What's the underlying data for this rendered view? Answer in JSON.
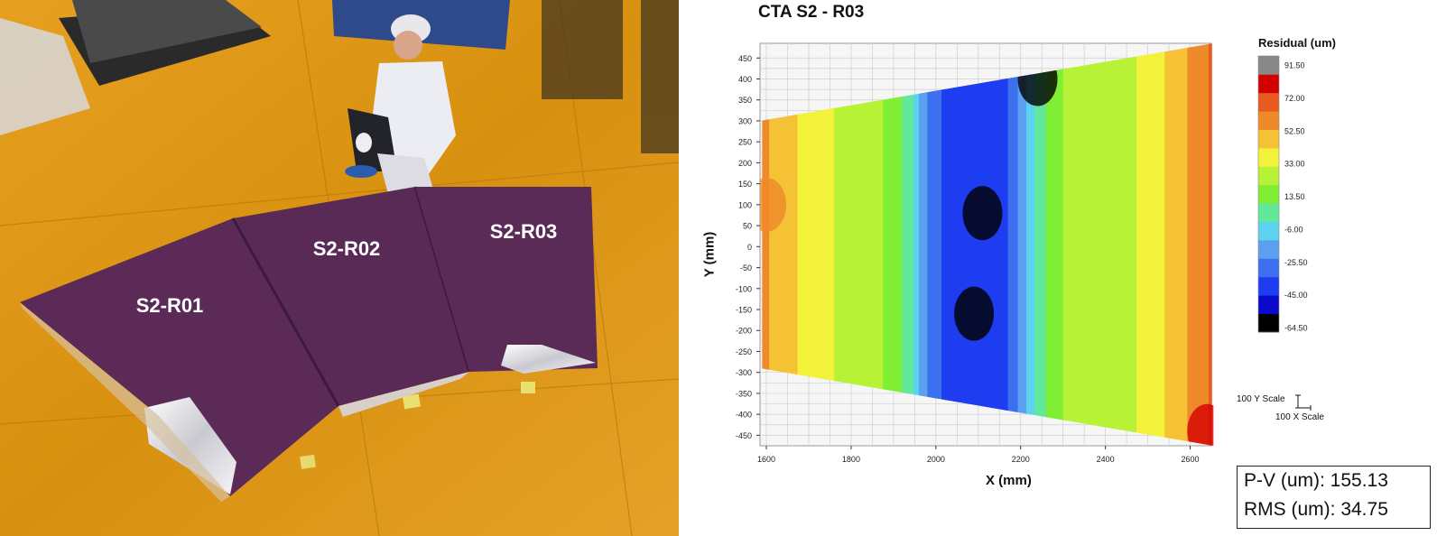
{
  "photo": {
    "panel_labels": [
      "S2-R01",
      "S2-R02",
      "S2-R03"
    ],
    "colors": {
      "floor": "#e49a18",
      "panel": "#5a2a55",
      "label": "#ffffff"
    }
  },
  "plot": {
    "title": "CTA S2 - R03",
    "colorbar": {
      "title": "Residual (um)",
      "tick_labels": [
        "91.50",
        "72.00",
        "52.50",
        "33.00",
        "13.50",
        "-6.00",
        "-25.50",
        "-45.00",
        "-64.50"
      ],
      "range_um": [
        -64.5,
        91.5
      ],
      "colors": [
        "#000000",
        "#0a0acc",
        "#1e3cf0",
        "#3c70ef",
        "#5aa0ee",
        "#5ad2f0",
        "#62e89a",
        "#80ee32",
        "#b8f236",
        "#f2f23a",
        "#f5c235",
        "#ef8a2a",
        "#e85a1e",
        "#d40000",
        "#888888"
      ]
    },
    "scale_bar": {
      "y_label": "100 Y Scale",
      "x_label": "100 X Scale"
    },
    "stats": {
      "pv_label": "P-V (um): 155.13",
      "rms_label": "RMS (um): 34.75"
    },
    "chart_data": {
      "type": "heatmap",
      "title": "CTA S2 - R03",
      "xlabel": "X (mm)",
      "ylabel": "Y (mm)",
      "xlim": [
        1585,
        2650
      ],
      "ylim": [
        -475,
        485
      ],
      "x_ticks": [
        1600,
        1800,
        2000,
        2200,
        2400,
        2600
      ],
      "y_ticks": [
        450,
        400,
        350,
        300,
        250,
        200,
        150,
        100,
        50,
        0,
        -50,
        -100,
        -150,
        -200,
        -250,
        -300,
        -350,
        -400,
        -450
      ],
      "grid": true,
      "panel_outline_mm": [
        [
          1585,
          300
        ],
        [
          2655,
          485
        ],
        [
          2655,
          -475
        ],
        [
          1585,
          -290
        ]
      ],
      "residual_profile_by_x": {
        "x_mm": [
          1590,
          1640,
          1680,
          1720,
          1780,
          1850,
          1900,
          1940,
          1980,
          2030,
          2100,
          2150,
          2180,
          2220,
          2260,
          2300,
          2350,
          2420,
          2500,
          2560,
          2610,
          2650
        ],
        "residual_um": [
          60,
          55,
          45,
          38,
          35,
          30,
          20,
          5,
          -20,
          -35,
          -42,
          -40,
          -25,
          -5,
          15,
          25,
          30,
          32,
          38,
          50,
          62,
          70
        ]
      },
      "local_extrema": [
        {
          "x_mm": 2110,
          "y_mm": 80,
          "residual_um": -60
        },
        {
          "x_mm": 2090,
          "y_mm": -160,
          "residual_um": -60
        },
        {
          "x_mm": 2240,
          "y_mm": 400,
          "residual_um": -64.5
        },
        {
          "x_mm": 2640,
          "y_mm": -440,
          "residual_um": 91.5
        },
        {
          "x_mm": 1600,
          "y_mm": 100,
          "residual_um": 65
        }
      ]
    }
  }
}
